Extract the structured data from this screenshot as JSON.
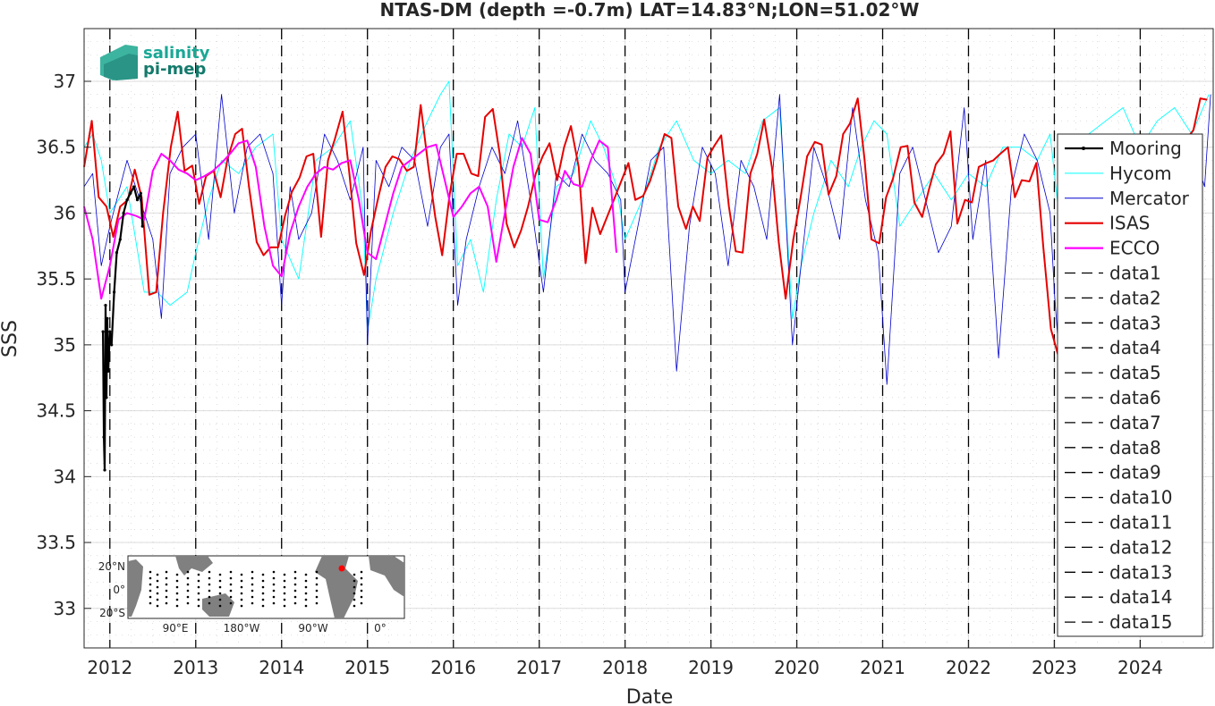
{
  "chart_data": {
    "type": "line",
    "title": "NTAS-DM (depth =-0.7m) LAT=14.83°N;LON=51.02°W",
    "xlabel": "Date",
    "ylabel": "SSS",
    "xlim": [
      2011.7,
      2024.85
    ],
    "ylim": [
      32.7,
      37.4
    ],
    "x_ticks": [
      2012,
      2013,
      2014,
      2015,
      2016,
      2017,
      2018,
      2019,
      2020,
      2021,
      2022,
      2023,
      2024
    ],
    "x_tick_labels": [
      "2012",
      "2013",
      "2014",
      "2015",
      "2016",
      "2017",
      "2018",
      "2019",
      "2020",
      "2021",
      "2022",
      "2023",
      "2024"
    ],
    "y_ticks": [
      33,
      33.5,
      34,
      34.5,
      35,
      35.5,
      36,
      36.5,
      37
    ],
    "y_tick_labels": [
      "33",
      "33.5",
      "34",
      "34.5",
      "35",
      "35.5",
      "36",
      "36.5",
      "37"
    ],
    "grid": true,
    "legend_position": "right",
    "series": [
      {
        "name": "Mooring",
        "color": "#000000",
        "x": [
          2011.92,
          2011.93,
          2011.94,
          2011.95,
          2011.96,
          2011.97,
          2011.98,
          2012.0,
          2012.02,
          2012.05,
          2012.08,
          2012.12,
          2012.16,
          2012.2,
          2012.24,
          2012.28,
          2012.32,
          2012.36,
          2012.38
        ],
        "y": [
          35.1,
          34.3,
          34.05,
          35.3,
          34.6,
          35.2,
          34.8,
          35.1,
          35.0,
          35.4,
          35.7,
          35.8,
          36.0,
          36.1,
          36.15,
          36.2,
          36.1,
          36.15,
          35.9
        ]
      },
      {
        "name": "Hycom",
        "color": "#00ffff",
        "x": [
          2011.7,
          2011.8,
          2011.9,
          2012.0,
          2012.2,
          2012.4,
          2012.55,
          2012.7,
          2012.9,
          2013.0,
          2013.15,
          2013.3,
          2013.5,
          2013.7,
          2013.9,
          2014.0,
          2014.2,
          2014.4,
          2014.6,
          2014.8,
          2014.95,
          2015.0,
          2015.1,
          2015.3,
          2015.5,
          2015.7,
          2015.85,
          2015.95,
          2016.05,
          2016.2,
          2016.35,
          2016.5,
          2016.65,
          2016.8,
          2016.95,
          2017.05,
          2017.2,
          2017.4,
          2017.6,
          2017.75,
          2017.9,
          2018.0,
          2018.2,
          2018.4,
          2018.6,
          2018.8,
          2019.0,
          2019.2,
          2019.4,
          2019.6,
          2019.8,
          2019.95,
          2020.05,
          2020.2,
          2020.4,
          2020.6,
          2020.75,
          2020.9,
          2021.05,
          2021.2,
          2021.4,
          2021.6,
          2021.8,
          2022.0,
          2022.2,
          2022.4,
          2022.6,
          2022.8,
          2022.95,
          2023.05,
          2023.2,
          2023.4,
          2023.6,
          2023.8,
          2024.0,
          2024.2,
          2024.4,
          2024.6,
          2024.8
        ],
        "y": [
          36.5,
          36.6,
          36.4,
          36.0,
          36.2,
          35.4,
          35.4,
          35.3,
          35.4,
          35.7,
          36.1,
          36.4,
          36.3,
          36.5,
          36.6,
          35.8,
          35.5,
          36.4,
          36.5,
          36.7,
          36.0,
          35.1,
          35.5,
          36.0,
          36.4,
          36.7,
          36.9,
          37.0,
          35.6,
          35.8,
          35.4,
          36.1,
          36.6,
          36.5,
          36.8,
          35.5,
          36.2,
          36.3,
          36.7,
          36.5,
          36.2,
          35.8,
          36.1,
          36.5,
          36.7,
          36.4,
          36.3,
          36.4,
          36.3,
          36.7,
          36.8,
          35.2,
          35.6,
          36.0,
          36.4,
          36.2,
          36.5,
          36.7,
          36.6,
          35.9,
          36.1,
          36.3,
          36.1,
          36.3,
          36.2,
          36.5,
          36.5,
          36.4,
          36.6,
          36.0,
          36.5,
          36.6,
          36.7,
          36.8,
          36.5,
          36.7,
          36.8,
          36.6,
          36.9
        ]
      },
      {
        "name": "Mercator",
        "color": "#0000cd",
        "x": [
          2011.7,
          2011.8,
          2011.9,
          2012.0,
          2012.2,
          2012.35,
          2012.5,
          2012.6,
          2012.7,
          2012.85,
          2013.0,
          2013.15,
          2013.3,
          2013.45,
          2013.6,
          2013.75,
          2013.9,
          2014.0,
          2014.1,
          2014.2,
          2014.35,
          2014.5,
          2014.65,
          2014.8,
          2014.95,
          2015.0,
          2015.1,
          2015.25,
          2015.4,
          2015.55,
          2015.7,
          2015.85,
          2015.95,
          2016.05,
          2016.15,
          2016.3,
          2016.45,
          2016.6,
          2016.75,
          2016.9,
          2017.05,
          2017.2,
          2017.35,
          2017.5,
          2017.65,
          2017.8,
          2017.95,
          2018.0,
          2018.15,
          2018.3,
          2018.45,
          2018.6,
          2018.75,
          2018.9,
          2019.05,
          2019.2,
          2019.35,
          2019.5,
          2019.65,
          2019.8,
          2019.95,
          2020.05,
          2020.2,
          2020.35,
          2020.5,
          2020.65,
          2020.8,
          2020.95,
          2021.05,
          2021.2,
          2021.35,
          2021.5,
          2021.65,
          2021.8,
          2021.95,
          2022.05,
          2022.2,
          2022.35,
          2022.5,
          2022.65,
          2022.8,
          2022.95,
          2023.0,
          2023.1,
          2023.25,
          2023.4,
          2023.55,
          2023.7,
          2023.85,
          2024.0,
          2024.15,
          2024.3,
          2024.45,
          2024.6,
          2024.75,
          2024.82
        ],
        "y": [
          36.2,
          36.3,
          35.6,
          35.9,
          36.4,
          36.1,
          35.8,
          35.2,
          36.3,
          36.5,
          36.6,
          35.8,
          36.9,
          36.0,
          36.5,
          36.6,
          36.3,
          35.3,
          36.2,
          35.8,
          36.0,
          36.6,
          36.4,
          36.1,
          36.5,
          35.0,
          36.4,
          36.2,
          36.5,
          36.4,
          35.9,
          36.5,
          36.6,
          35.3,
          35.8,
          36.2,
          36.5,
          36.3,
          36.7,
          36.1,
          35.4,
          36.3,
          36.2,
          36.6,
          36.4,
          36.3,
          36.1,
          35.4,
          35.9,
          36.4,
          36.5,
          34.8,
          35.9,
          36.5,
          36.3,
          35.6,
          36.4,
          36.2,
          35.8,
          36.9,
          35.0,
          35.6,
          36.5,
          36.2,
          35.8,
          36.8,
          36.1,
          35.7,
          34.7,
          36.3,
          36.5,
          36.1,
          35.7,
          35.9,
          36.8,
          35.8,
          36.4,
          34.9,
          36.2,
          36.6,
          36.4,
          36.0,
          35.4,
          34.5,
          36.1,
          36.4,
          36.3,
          36.6,
          36.2,
          36.4,
          36.6,
          36.3,
          36.1,
          36.5,
          36.2,
          36.9
        ]
      },
      {
        "name": "ISAS",
        "color": "#e60000",
        "x": [
          2011.7,
          2011.79,
          2011.87,
          2011.96,
          2012.04,
          2012.12,
          2012.21,
          2012.29,
          2012.37,
          2012.46,
          2012.54,
          2012.62,
          2012.71,
          2012.79,
          2012.87,
          2012.96,
          2013.04,
          2013.12,
          2013.21,
          2013.29,
          2013.37,
          2013.46,
          2013.54,
          2013.62,
          2013.71,
          2013.79,
          2013.87,
          2013.96,
          2014.04,
          2014.12,
          2014.21,
          2014.29,
          2014.37,
          2014.46,
          2014.54,
          2014.62,
          2014.71,
          2014.79,
          2014.87,
          2014.96,
          2015.04,
          2015.12,
          2015.21,
          2015.29,
          2015.37,
          2015.46,
          2015.54,
          2015.62,
          2015.71,
          2015.79,
          2015.87,
          2015.96,
          2016.04,
          2016.12,
          2016.21,
          2016.29,
          2016.37,
          2016.46,
          2016.54,
          2016.62,
          2016.71,
          2016.79,
          2016.87,
          2016.96,
          2017.04,
          2017.12,
          2017.21,
          2017.29,
          2017.37,
          2017.46,
          2017.54,
          2017.62,
          2017.71,
          2017.79,
          2017.87,
          2017.96,
          2018.04,
          2018.12,
          2018.21,
          2018.29,
          2018.37,
          2018.46,
          2018.54,
          2018.62,
          2018.71,
          2018.79,
          2018.87,
          2018.96,
          2019.04,
          2019.12,
          2019.21,
          2019.29,
          2019.37,
          2019.46,
          2019.54,
          2019.62,
          2019.71,
          2019.79,
          2019.87,
          2019.96,
          2020.04,
          2020.12,
          2020.21,
          2020.29,
          2020.37,
          2020.46,
          2020.54,
          2020.62,
          2020.71,
          2020.79,
          2020.87,
          2020.96,
          2021.04,
          2021.12,
          2021.21,
          2021.29,
          2021.37,
          2021.46,
          2021.54,
          2021.62,
          2021.71,
          2021.79,
          2021.87,
          2021.96,
          2022.04,
          2022.12,
          2022.21,
          2022.29,
          2022.37,
          2022.46,
          2022.54,
          2022.62,
          2022.71,
          2022.79,
          2022.87,
          2022.96,
          2023.04,
          2023.12,
          2024.62,
          2024.7,
          2024.78
        ],
        "y": [
          36.35,
          36.7,
          36.12,
          36.05,
          35.82,
          36.05,
          36.1,
          36.33,
          36.12,
          35.38,
          35.4,
          36.0,
          36.5,
          36.77,
          36.32,
          36.36,
          36.07,
          36.28,
          36.32,
          36.12,
          36.41,
          36.6,
          36.64,
          36.2,
          35.78,
          35.68,
          35.74,
          35.74,
          35.98,
          36.16,
          36.27,
          36.43,
          36.45,
          35.82,
          36.4,
          36.56,
          36.77,
          36.3,
          35.77,
          35.53,
          35.86,
          36.1,
          36.35,
          36.43,
          36.41,
          36.32,
          36.35,
          36.82,
          36.35,
          35.97,
          35.68,
          36.15,
          36.45,
          36.45,
          36.3,
          36.28,
          36.73,
          36.79,
          36.45,
          35.92,
          35.74,
          35.87,
          36.05,
          36.3,
          36.43,
          36.53,
          36.25,
          36.5,
          36.66,
          36.35,
          35.62,
          36.04,
          35.84,
          35.97,
          36.1,
          36.25,
          36.38,
          36.1,
          36.13,
          36.24,
          36.4,
          36.6,
          36.57,
          36.05,
          35.88,
          36.05,
          35.94,
          36.42,
          36.51,
          36.59,
          36.05,
          35.71,
          35.7,
          36.3,
          36.45,
          36.71,
          36.35,
          35.78,
          35.35,
          35.8,
          36.1,
          36.43,
          36.54,
          36.52,
          36.14,
          36.28,
          36.6,
          36.68,
          36.87,
          36.4,
          35.8,
          35.77,
          36.12,
          36.26,
          36.5,
          36.51,
          36.08,
          35.97,
          36.18,
          36.37,
          36.45,
          36.62,
          35.92,
          36.1,
          36.08,
          36.35,
          36.38,
          36.4,
          36.45,
          36.5,
          36.12,
          36.25,
          36.24,
          36.38,
          35.75,
          35.12,
          34.93,
          35.35,
          36.63,
          36.87,
          36.86
        ]
      },
      {
        "name": "ECCO",
        "color": "#ff00ff",
        "x": [
          2011.7,
          2011.8,
          2011.9,
          2012.0,
          2012.1,
          2012.2,
          2012.3,
          2012.4,
          2012.5,
          2012.6,
          2012.7,
          2012.8,
          2012.9,
          2013.0,
          2013.1,
          2013.2,
          2013.3,
          2013.4,
          2013.5,
          2013.6,
          2013.7,
          2013.8,
          2013.9,
          2014.0,
          2014.1,
          2014.2,
          2014.3,
          2014.4,
          2014.5,
          2014.6,
          2014.7,
          2014.8,
          2014.9,
          2015.0,
          2015.1,
          2015.2,
          2015.3,
          2015.4,
          2015.5,
          2015.6,
          2015.7,
          2015.8,
          2015.9,
          2016.0,
          2016.1,
          2016.2,
          2016.3,
          2016.4,
          2016.5,
          2016.6,
          2016.7,
          2016.8,
          2016.9,
          2017.0,
          2017.1,
          2017.2,
          2017.3,
          2017.4,
          2017.5,
          2017.6,
          2017.7,
          2017.8,
          2017.9
        ],
        "y": [
          36.05,
          35.8,
          35.35,
          35.6,
          35.95,
          36.0,
          35.98,
          35.95,
          36.32,
          36.45,
          36.4,
          36.33,
          36.3,
          36.25,
          36.28,
          36.32,
          36.38,
          36.45,
          36.53,
          36.55,
          36.35,
          35.9,
          35.6,
          35.52,
          35.85,
          36.05,
          36.2,
          36.3,
          36.35,
          36.33,
          36.38,
          36.4,
          36.1,
          35.7,
          35.65,
          35.9,
          36.15,
          36.35,
          36.4,
          36.45,
          36.5,
          36.52,
          36.25,
          35.97,
          36.05,
          36.15,
          36.2,
          36.05,
          35.63,
          36.0,
          36.35,
          36.57,
          36.45,
          35.95,
          35.93,
          36.1,
          36.32,
          36.22,
          36.2,
          36.4,
          36.55,
          36.5,
          35.7
        ]
      }
    ],
    "vertical_markers": {
      "style": "dashed",
      "color": "#000000",
      "x": [
        2012.0,
        2013.0,
        2014.0,
        2015.0,
        2016.0,
        2017.0,
        2018.0,
        2019.0,
        2020.0,
        2021.0,
        2022.0,
        2023.0,
        2024.0
      ],
      "legend_names": [
        "data1",
        "data2",
        "data3",
        "data4",
        "data5",
        "data6",
        "data7",
        "data8",
        "data9",
        "data10",
        "data11",
        "data12",
        "data13",
        "data14",
        "data15"
      ]
    },
    "logo": {
      "line1": "salinity",
      "line2": "pi-mep",
      "color1": "#1aa896",
      "color2": "#147a6c"
    },
    "inset_map": {
      "y_labels": [
        "20°N",
        "0°",
        "20°S"
      ],
      "x_labels": [
        "90°E",
        "180°W",
        "90°W",
        "0°"
      ],
      "marker_color": "#ff0000",
      "land_color": "#808080"
    }
  }
}
